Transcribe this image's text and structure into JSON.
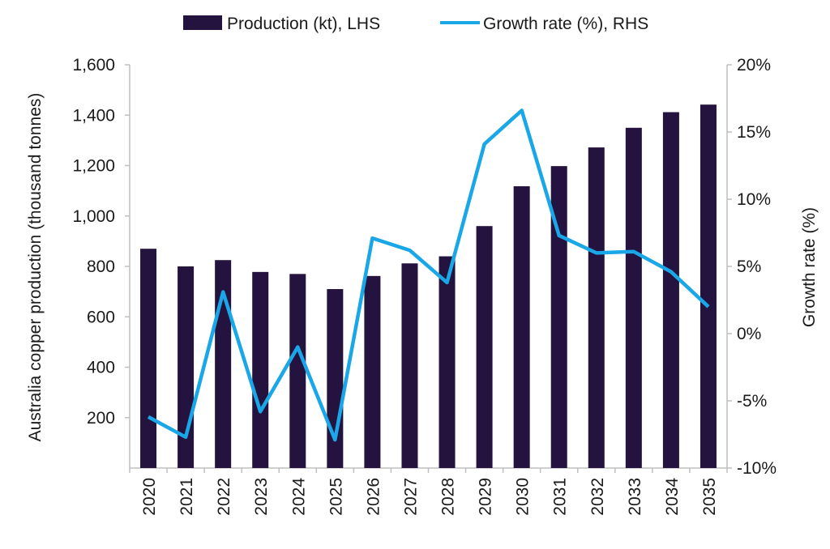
{
  "chart_data": {
    "type": "bar+line",
    "categories": [
      "2020",
      "2021",
      "2022",
      "2023",
      "2024",
      "2025",
      "2026",
      "2027",
      "2028",
      "2029",
      "2030",
      "2031",
      "2032",
      "2033",
      "2034",
      "2035"
    ],
    "series": [
      {
        "name": "Production (kt), LHS",
        "type": "bar",
        "axis": "left",
        "values": [
          870,
          800,
          825,
          778,
          770,
          710,
          762,
          812,
          840,
          960,
          1118,
          1198,
          1272,
          1350,
          1412,
          1442
        ]
      },
      {
        "name": "Growth rate (%), RHS",
        "type": "line",
        "axis": "right",
        "values": [
          -6.2,
          -7.7,
          3.1,
          -5.8,
          -1.0,
          -7.9,
          7.1,
          6.2,
          3.8,
          14.1,
          16.6,
          7.3,
          6.0,
          6.1,
          4.6,
          2.0
        ]
      }
    ],
    "ylabel": "Australia copper production (thousand tonnes)",
    "y2label": "Growth rate (%)",
    "ylim": [
      0,
      1600
    ],
    "y2lim": [
      -10,
      20
    ],
    "yticks": [
      "200",
      "400",
      "600",
      "800",
      "1,000",
      "1,200",
      "1,400",
      "1,600"
    ],
    "yticks_values": [
      200,
      400,
      600,
      800,
      1000,
      1200,
      1400,
      1600
    ],
    "y2ticks": [
      "-10%",
      "-5%",
      "0%",
      "5%",
      "10%",
      "15%",
      "20%"
    ],
    "y2ticks_values": [
      -10,
      -5,
      0,
      5,
      10,
      15,
      20
    ],
    "legend_position": "top-center",
    "grid": false,
    "colors": {
      "bar": "#24133f",
      "line": "#1aa7e8",
      "axis": "#bfbfbf"
    }
  }
}
